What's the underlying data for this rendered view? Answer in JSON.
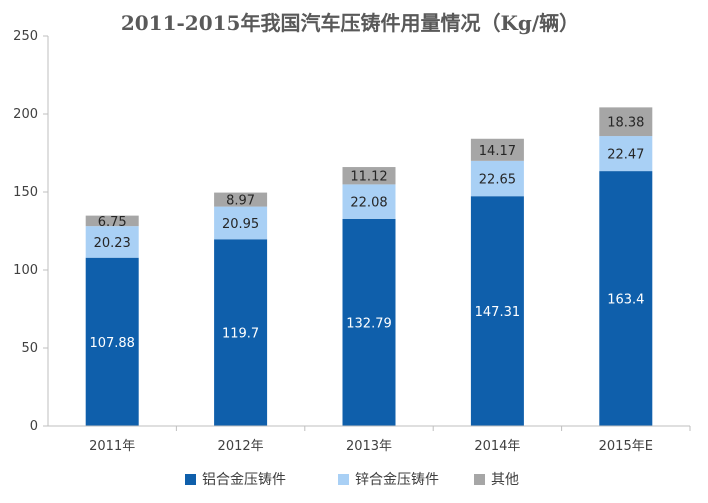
{
  "chart_data": {
    "type": "bar",
    "stacked": true,
    "title": "2011-2015年我国汽车压铸件用量情况（Kg/辆）",
    "categories": [
      "2011年",
      "2012年",
      "2013年",
      "2014年",
      "2015年E"
    ],
    "series": [
      {
        "name": "铝合金压铸件",
        "color": "#0f5fab",
        "label_color": "#ffffff",
        "values": [
          107.88,
          119.7,
          132.79,
          147.31,
          163.4
        ],
        "labels": [
          "107.88",
          "119.7",
          "132.79",
          "147.31",
          "163.4"
        ]
      },
      {
        "name": "锌合金压铸件",
        "color": "#a9d0f5",
        "label_color": "#262626",
        "values": [
          20.23,
          20.95,
          22.08,
          22.65,
          22.47
        ],
        "labels": [
          "20.23",
          "20.95",
          "22.08",
          "22.65",
          "22.47"
        ]
      },
      {
        "name": "其他",
        "color": "#a6a6a6",
        "label_color": "#262626",
        "values": [
          6.75,
          8.97,
          11.12,
          14.17,
          18.38
        ],
        "labels": [
          "6.75",
          "8.97",
          "11.12",
          "14.17",
          "18.38"
        ]
      }
    ],
    "ylim": [
      0,
      250
    ],
    "yticks": [
      "0",
      "50",
      "100",
      "150",
      "200",
      "250"
    ],
    "grid": false,
    "legend": "bottom"
  }
}
